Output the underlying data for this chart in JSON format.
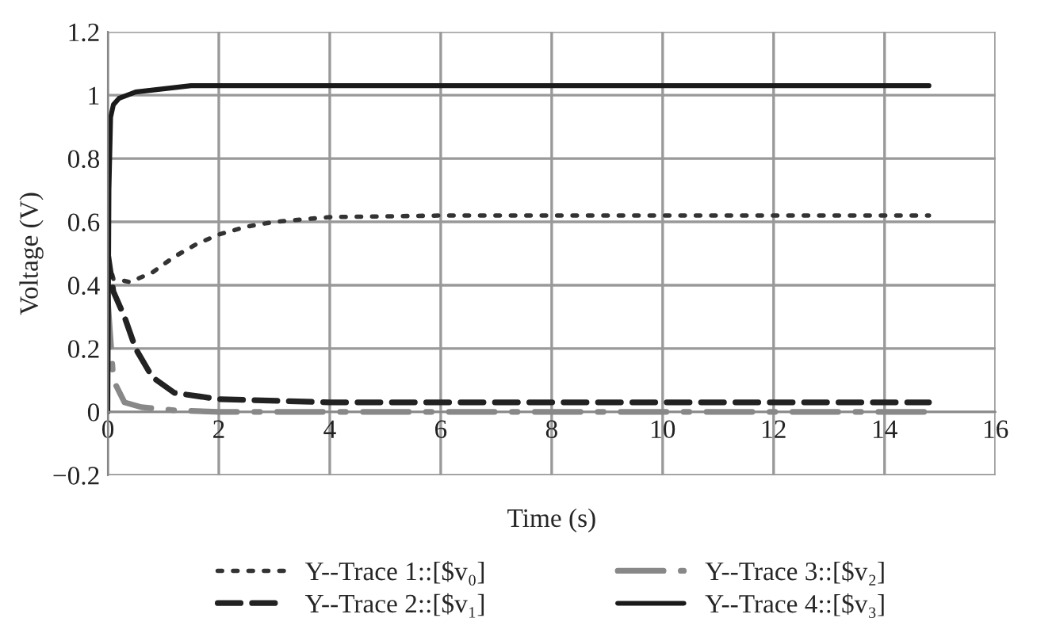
{
  "chart_data": {
    "type": "line",
    "xlabel": "Time (s)",
    "ylabel": "Voltage (V)",
    "xlim": [
      0,
      16
    ],
    "xticks": [
      0,
      2,
      4,
      6,
      8,
      10,
      12,
      14,
      16
    ],
    "ylim": [
      -0.2,
      1.2
    ],
    "yticks": [
      {
        "value": -0.2,
        "label": "−0.2"
      },
      0,
      0.2,
      0.4,
      0.6,
      0.8,
      1,
      1.2
    ],
    "grid": true,
    "legend": "bottom",
    "marker": "none",
    "series": [
      {
        "name": "Y--Trace 1::[$v₀]",
        "color": "#333333",
        "line_style": "dotted",
        "x": [
          0,
          0.1,
          0.4,
          0.8,
          1.2,
          1.6,
          2,
          2.5,
          3,
          4,
          6,
          8,
          14.8
        ],
        "values": [
          0.48,
          0.42,
          0.41,
          0.44,
          0.49,
          0.53,
          0.56,
          0.585,
          0.6,
          0.615,
          0.62,
          0.62,
          0.62
        ]
      },
      {
        "name": "Y--Trace 2::[$v₁]",
        "color": "#222222",
        "line_style": "dashed",
        "x": [
          0,
          0.1,
          0.3,
          0.5,
          0.8,
          1.2,
          2,
          4,
          14.8
        ],
        "values": [
          0.5,
          0.38,
          0.3,
          0.2,
          0.11,
          0.06,
          0.04,
          0.03,
          0.03
        ]
      },
      {
        "name": "Y--Trace 3::[$v₂]",
        "color": "#888888",
        "line_style": "dashdot",
        "x": [
          0,
          0.1,
          0.3,
          0.6,
          1.2,
          2,
          14.8
        ],
        "values": [
          0.35,
          0.1,
          0.03,
          0.015,
          0.005,
          0,
          0
        ]
      },
      {
        "name": "Y--Trace 4::[$v₃]",
        "color": "#1a1a1a",
        "line_style": "solid",
        "x": [
          0,
          0.02,
          0.05,
          0.1,
          0.2,
          0.5,
          1,
          1.5,
          3,
          14.8
        ],
        "values": [
          0,
          0.7,
          0.93,
          0.97,
          0.99,
          1.01,
          1.02,
          1.03,
          1.03,
          1.03
        ]
      }
    ]
  }
}
